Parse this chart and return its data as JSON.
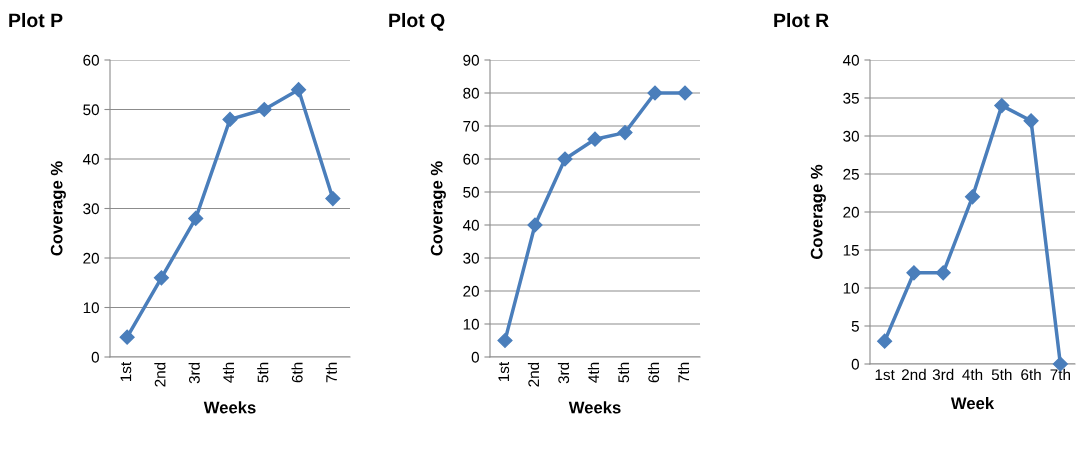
{
  "chart_data": [
    {
      "type": "line",
      "title": "Plot P",
      "xlabel": "Weeks",
      "ylabel": "Coverage %",
      "categories": [
        "1st",
        "2nd",
        "3rd",
        "4th",
        "5th",
        "6th",
        "7th"
      ],
      "series": [
        {
          "color": "#4a7ebb",
          "values": [
            4,
            16,
            28,
            48,
            50,
            54,
            32
          ]
        }
      ],
      "ylim": [
        0,
        60
      ],
      "yticks": [
        0,
        10,
        20,
        30,
        40,
        50,
        60
      ],
      "grid": "y",
      "marker": "diamond",
      "line_style": "solid"
    },
    {
      "type": "line",
      "title": "Plot Q",
      "xlabel": "Weeks",
      "ylabel": "Coverage %",
      "categories": [
        "1st",
        "2nd",
        "3rd",
        "4th",
        "5th",
        "6th",
        "7th"
      ],
      "series": [
        {
          "color": "#4a7ebb",
          "values": [
            5,
            40,
            60,
            66,
            68,
            80,
            80
          ]
        }
      ],
      "ylim": [
        0,
        90
      ],
      "yticks": [
        0,
        10,
        20,
        30,
        40,
        50,
        60,
        70,
        80,
        90
      ],
      "grid": "y",
      "marker": "diamond",
      "line_style": "solid"
    },
    {
      "type": "line",
      "title": "Plot R",
      "xlabel": "Week",
      "ylabel": "Coverage %",
      "categories": [
        "1st",
        "2nd",
        "3rd",
        "4th",
        "5th",
        "6th",
        "7th"
      ],
      "series": [
        {
          "color": "#4a7ebb",
          "values": [
            3,
            12,
            12,
            22,
            34,
            32,
            0
          ]
        }
      ],
      "ylim": [
        0,
        40
      ],
      "yticks": [
        0,
        5,
        10,
        15,
        20,
        25,
        30,
        35,
        40
      ],
      "grid": "y",
      "marker": "diamond",
      "line_style": "solid"
    }
  ]
}
